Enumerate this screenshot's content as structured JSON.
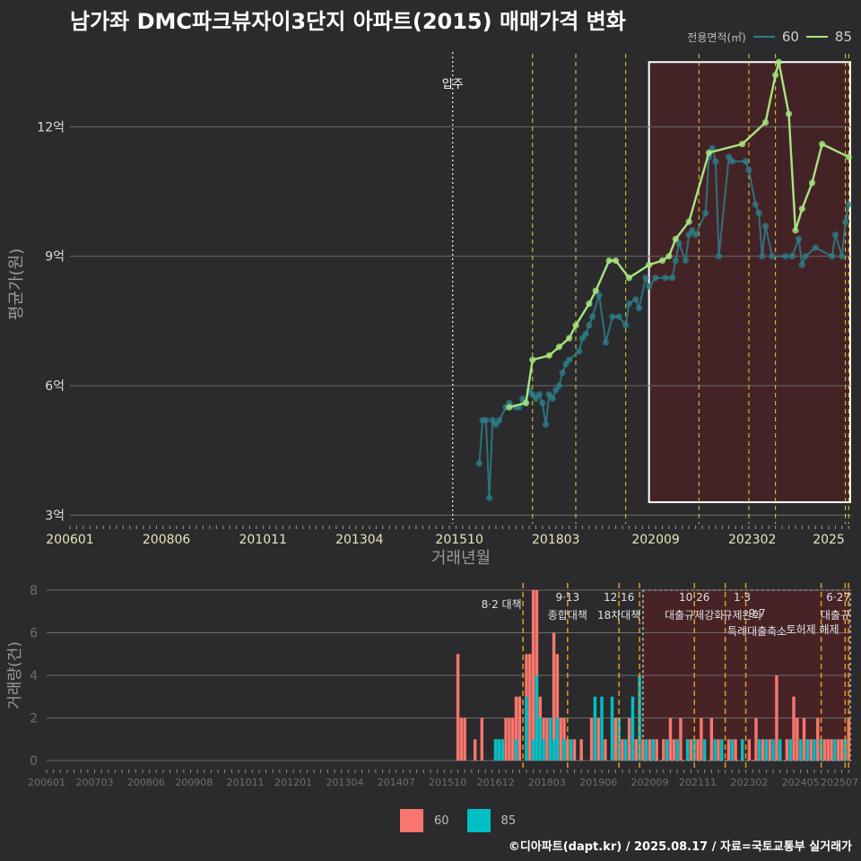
{
  "title": "남가좌 DMC파크뷰자이3단지 아파트(2015) 매매가격 변화",
  "legend_top": {
    "title": "전용면적(㎡)",
    "items": [
      "60",
      "85"
    ]
  },
  "legend_bottom": {
    "items": [
      "60",
      "85"
    ]
  },
  "footer": "©디아파트(dapt.kr) / 2025.08.17 / 자료=국토교통부 실거래가",
  "colors": {
    "s60_line": "#2e7f8a",
    "s85_line": "#a6e57f",
    "bar60": "#f8766d",
    "bar85": "#00bfc4",
    "vline": "#e6d22e",
    "vline_bottom": "#e59a1e",
    "highlight_box": "#ffffff",
    "highlight_fill": "#5a1e22"
  },
  "chart_data": [
    {
      "type": "line",
      "xlabel": "거래년월",
      "ylabel": "평균가(원)",
      "x_range": [
        "2006-01",
        "2025-08"
      ],
      "ylim": [
        2.8,
        13.9
      ],
      "y_ticks": [
        3,
        6,
        9,
        12
      ],
      "y_tick_labels": [
        "3억",
        "6억",
        "9억",
        "12억"
      ],
      "x_tick_labels": [
        "200601",
        "200806",
        "201011",
        "201304",
        "201510",
        "201803",
        "202009",
        "202302",
        "2025"
      ],
      "annotation": {
        "text": "입주",
        "x": "2015-08"
      },
      "policy_lines": [
        "2017-08",
        "2018-09",
        "2019-12",
        "2021-10",
        "2023-01",
        "2023-09",
        "2025-06",
        "2025-07"
      ],
      "highlight": {
        "x": [
          "2020-07",
          "2025-08"
        ],
        "y": [
          3.3,
          13.5
        ]
      },
      "series": [
        {
          "name": "60",
          "x": [
            "2016-04",
            "2016-05",
            "2016-06",
            "2016-07",
            "2016-08",
            "2016-09",
            "2016-10",
            "2016-12",
            "2017-01",
            "2017-03",
            "2017-04",
            "2017-05",
            "2017-06",
            "2017-07",
            "2017-08",
            "2017-09",
            "2017-10",
            "2017-11",
            "2017-12",
            "2018-01",
            "2018-02",
            "2018-03",
            "2018-04",
            "2018-05",
            "2018-06",
            "2018-07",
            "2018-10",
            "2018-11",
            "2018-12",
            "2019-01",
            "2019-02",
            "2019-04",
            "2019-06",
            "2019-08",
            "2019-10",
            "2019-12",
            "2020-01",
            "2020-03",
            "2020-04",
            "2020-06",
            "2020-07",
            "2020-09",
            "2020-12",
            "2021-02",
            "2021-03",
            "2021-04",
            "2021-06",
            "2021-07",
            "2021-08",
            "2021-09",
            "2021-12",
            "2022-01",
            "2022-02",
            "2022-03",
            "2022-04",
            "2022-07",
            "2022-08",
            "2022-12",
            "2023-01",
            "2023-03",
            "2023-04",
            "2023-05",
            "2023-06",
            "2023-08",
            "2023-12",
            "2024-02",
            "2024-04",
            "2024-05",
            "2024-06",
            "2024-09",
            "2025-02",
            "2025-03",
            "2025-05",
            "2025-06",
            "2025-07"
          ],
          "y": [
            4.2,
            5.2,
            5.2,
            3.4,
            5.2,
            5.1,
            5.2,
            5.5,
            5.6,
            5.5,
            5.5,
            5.7,
            5.6,
            5.9,
            5.8,
            5.7,
            5.8,
            5.6,
            5.1,
            5.8,
            5.7,
            5.9,
            6.0,
            6.3,
            6.5,
            6.6,
            6.8,
            7.1,
            7.2,
            7.4,
            7.6,
            8.1,
            7.0,
            7.6,
            7.6,
            7.4,
            7.9,
            8.0,
            7.8,
            8.5,
            8.3,
            8.5,
            8.5,
            8.5,
            8.9,
            9.3,
            8.9,
            9.5,
            9.6,
            9.5,
            10.0,
            11.3,
            11.5,
            11.2,
            9.0,
            11.3,
            11.2,
            11.2,
            11.0,
            10.2,
            10.0,
            9.0,
            9.7,
            9.0,
            9.0,
            9.0,
            9.4,
            8.8,
            9.0,
            9.2,
            9.0,
            9.5,
            9.0,
            9.8,
            10.2
          ]
        },
        {
          "name": "85",
          "x": [
            "2017-01",
            "2017-06",
            "2017-08",
            "2018-01",
            "2018-04",
            "2018-07",
            "2018-09",
            "2019-01",
            "2019-03",
            "2019-07",
            "2019-09",
            "2020-01",
            "2020-07",
            "2020-11",
            "2021-01",
            "2021-03",
            "2021-07",
            "2022-01",
            "2022-11",
            "2023-06",
            "2023-09",
            "2023-10",
            "2024-01",
            "2024-03",
            "2024-05",
            "2024-08",
            "2024-11",
            "2025-07"
          ],
          "y": [
            5.5,
            5.6,
            6.6,
            6.7,
            6.9,
            7.1,
            7.4,
            7.9,
            8.2,
            8.9,
            8.9,
            8.5,
            8.8,
            8.9,
            9.0,
            9.4,
            9.8,
            11.4,
            11.6,
            12.1,
            13.2,
            13.5,
            12.3,
            9.6,
            10.1,
            10.7,
            11.6,
            11.3
          ]
        }
      ]
    },
    {
      "type": "bar",
      "ylabel": "거래량(건)",
      "ylim": [
        0,
        8
      ],
      "y_ticks": [
        0,
        2,
        4,
        6,
        8
      ],
      "x_tick_labels": [
        "200601",
        "200703",
        "200806",
        "200908",
        "201011",
        "201201",
        "201304",
        "201407",
        "201510",
        "201612",
        "201803",
        "201906",
        "202009",
        "202111",
        "202302",
        "202405",
        "202507"
      ],
      "policy_lines": [
        "2017-08",
        "2018-09",
        "2019-12",
        "2020-06",
        "2021-10",
        "2022-07",
        "2023-01",
        "2024-11",
        "2025-06",
        "2025-07"
      ],
      "annotations": [
        {
          "x": "2017-08",
          "lines": [
            "8·2 대책"
          ]
        },
        {
          "x": "2018-09",
          "lines": [
            "9·13",
            "종합대책"
          ]
        },
        {
          "x": "2019-12",
          "lines": [
            "12·16",
            "18차대책"
          ]
        },
        {
          "x": "2021-10",
          "lines": [
            "10·26",
            "대출규제강화"
          ]
        },
        {
          "x": "2023-01",
          "lines": [
            "1·3",
            "규제완화"
          ]
        },
        {
          "x": "2023-09",
          "lines": [
            "9·7",
            "특례대출축소"
          ]
        },
        {
          "x": "2025-06",
          "lines": [
            "6·27",
            "대출규"
          ]
        },
        {
          "x": "2024-11",
          "lines": [
            "토허제 해제"
          ]
        }
      ],
      "highlight": {
        "x": [
          "2020-07",
          "2025-08"
        ]
      },
      "series": [
        {
          "name": "60",
          "x": [
            "2016-01",
            "2016-02",
            "2016-03",
            "2016-06",
            "2016-08",
            "2016-12",
            "2017-02",
            "2017-03",
            "2017-04",
            "2017-05",
            "2017-06",
            "2017-07",
            "2017-09",
            "2017-10",
            "2017-11",
            "2017-12",
            "2018-01",
            "2018-02",
            "2018-03",
            "2018-05",
            "2018-06",
            "2018-07",
            "2018-08",
            "2018-09",
            "2018-11",
            "2019-01",
            "2019-04",
            "2019-06",
            "2019-08",
            "2019-10",
            "2019-11",
            "2019-12",
            "2020-01",
            "2020-03",
            "2020-05",
            "2020-07",
            "2020-09",
            "2020-11",
            "2021-01",
            "2021-03",
            "2021-04",
            "2021-06",
            "2021-09",
            "2021-11",
            "2021-12",
            "2022-03",
            "2022-05",
            "2022-08",
            "2022-10",
            "2023-02",
            "2023-04",
            "2023-06",
            "2023-08",
            "2023-10",
            "2024-01",
            "2024-03",
            "2024-04",
            "2024-06",
            "2024-08",
            "2024-10",
            "2024-12",
            "2025-01",
            "2025-02",
            "2025-04",
            "2025-05",
            "2025-06",
            "2025-07"
          ],
          "y": [
            5,
            2,
            2,
            1,
            2,
            1,
            1,
            2,
            2,
            2,
            3,
            3,
            5,
            5,
            8,
            8,
            3,
            2,
            2,
            6,
            5,
            2,
            2,
            1,
            1,
            1,
            2,
            2,
            1,
            2,
            2,
            2,
            1,
            2,
            1,
            1,
            1,
            1,
            1,
            2,
            1,
            2,
            1,
            1,
            2,
            2,
            1,
            1,
            1,
            1,
            2,
            1,
            1,
            4,
            1,
            3,
            2,
            2,
            1,
            2,
            1,
            1,
            1,
            1,
            1,
            1,
            2
          ]
        },
        {
          "name": "85",
          "x": [
            "2016-12",
            "2017-01",
            "2017-02",
            "2017-06",
            "2017-09",
            "2017-11",
            "2017-12",
            "2018-01",
            "2018-02",
            "2018-04",
            "2018-05",
            "2018-06",
            "2018-08",
            "2018-10",
            "2019-05",
            "2019-07",
            "2019-10",
            "2019-12",
            "2020-02",
            "2020-04",
            "2020-06",
            "2020-08",
            "2020-10",
            "2021-02",
            "2021-05",
            "2021-08",
            "2021-10",
            "2022-01",
            "2022-04",
            "2022-06",
            "2022-09",
            "2022-12",
            "2023-05",
            "2023-07",
            "2023-09",
            "2023-11",
            "2024-02",
            "2024-05",
            "2024-07",
            "2024-09",
            "2024-11",
            "2025-03",
            "2025-06"
          ],
          "y": [
            1,
            1,
            1,
            1,
            3,
            1,
            4,
            2,
            1,
            2,
            1,
            2,
            1,
            1,
            3,
            3,
            3,
            2,
            1,
            3,
            4,
            1,
            1,
            1,
            1,
            1,
            1,
            1,
            1,
            1,
            1,
            1,
            1,
            1,
            1,
            1,
            1,
            1,
            1,
            1,
            1,
            1,
            1
          ]
        }
      ]
    }
  ]
}
